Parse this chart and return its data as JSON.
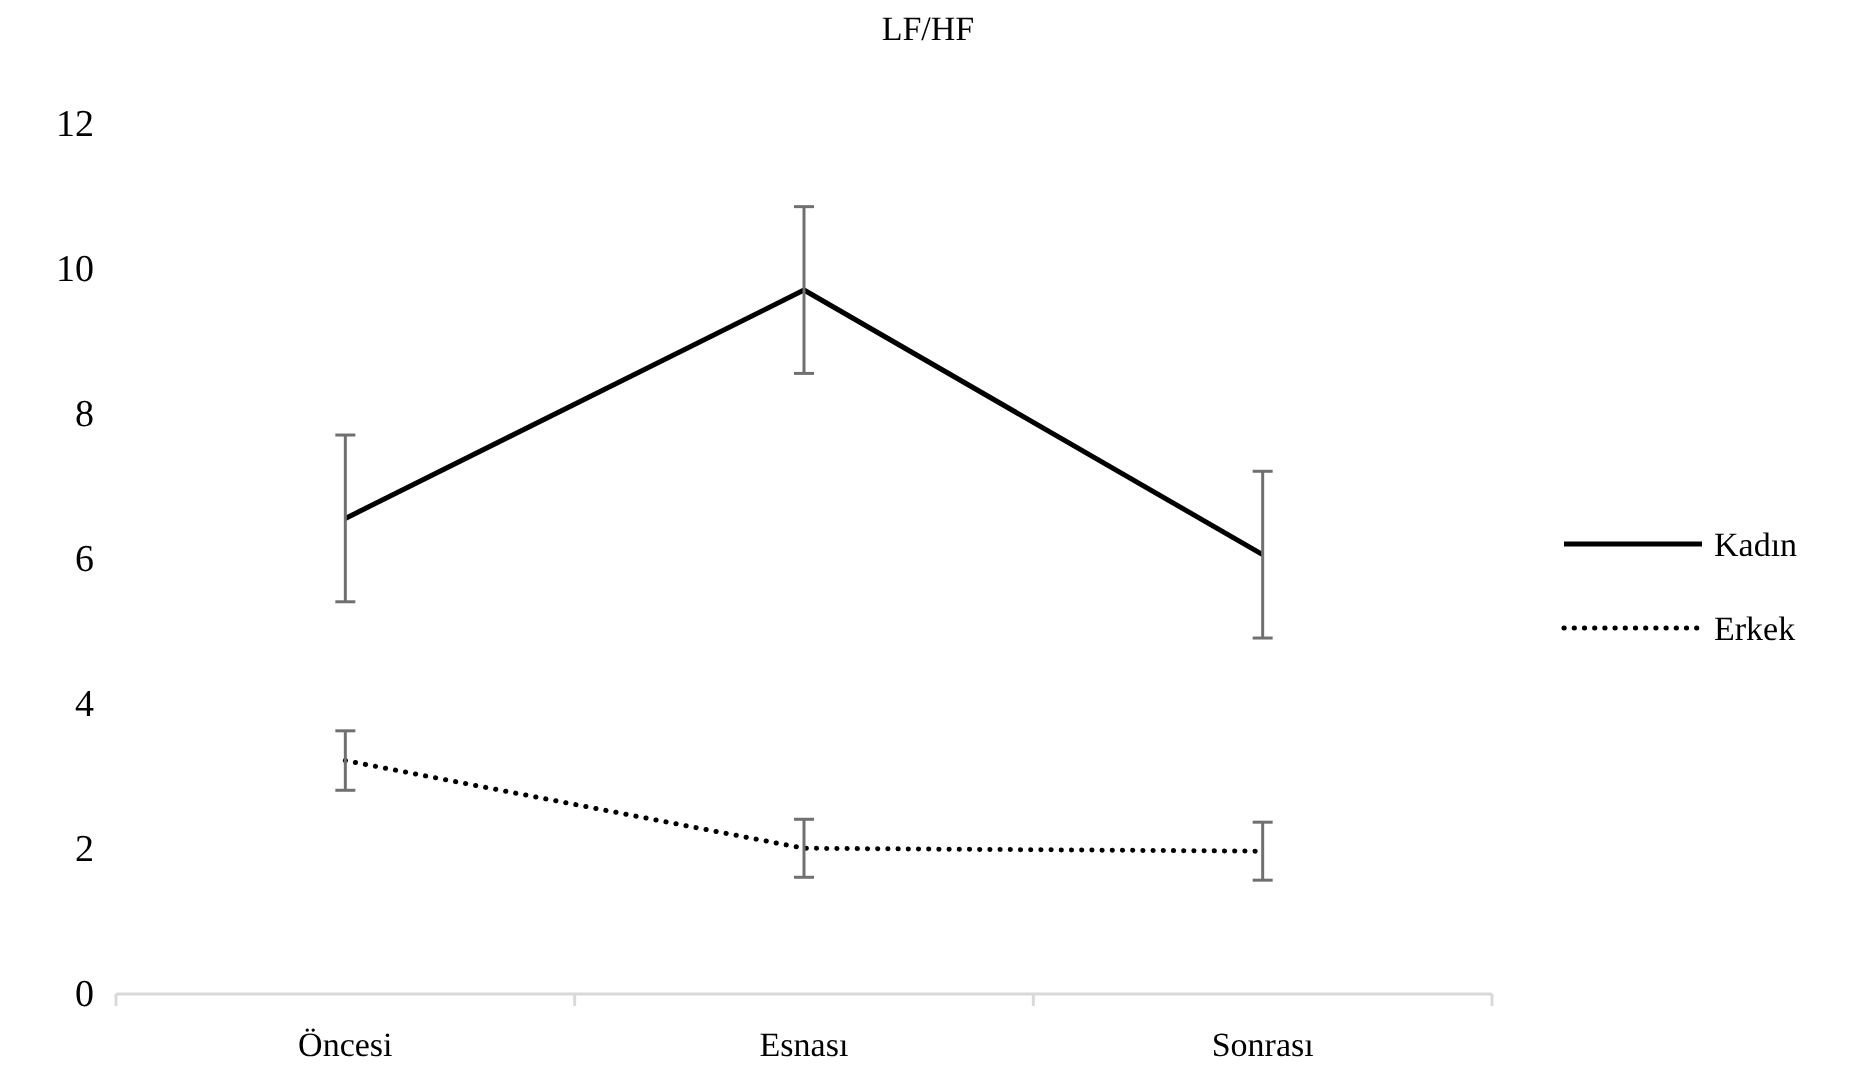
{
  "chart_data": {
    "type": "line",
    "title": "LF/HF",
    "categories": [
      "Öncesi",
      "Esnası",
      "Sonrası"
    ],
    "series": [
      {
        "name": "Kadın",
        "color": "#000000",
        "line_style": "solid",
        "values": [
          6.56,
          9.71,
          6.06
        ],
        "errors": [
          1.15,
          1.15,
          1.15
        ]
      },
      {
        "name": "Erkek",
        "color": "#000000",
        "line_style": "dotted",
        "values": [
          3.22,
          2.01,
          1.97
        ],
        "errors": [
          0.41,
          0.4,
          0.4
        ]
      }
    ],
    "ylim": [
      0,
      12
    ],
    "yticks": [
      0,
      2,
      4,
      6,
      8,
      10,
      12
    ],
    "grid": false,
    "legend": "right",
    "marker": "none"
  }
}
